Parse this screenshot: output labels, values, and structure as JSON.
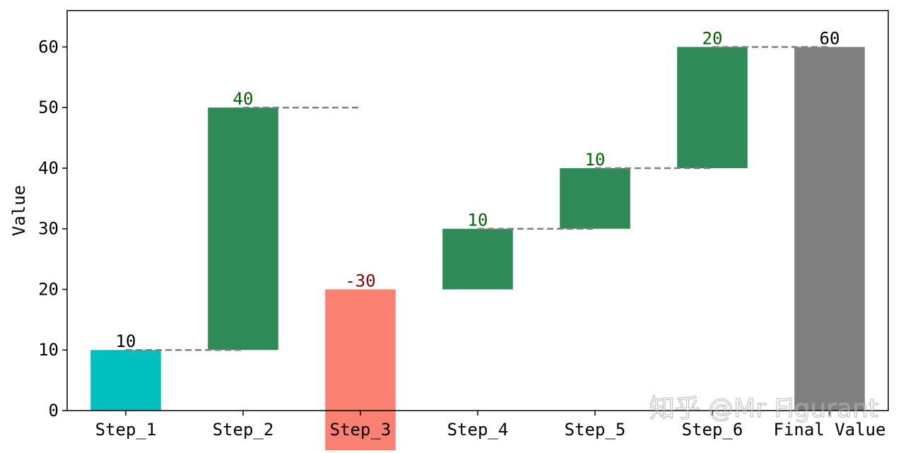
{
  "chart_data": {
    "type": "bar",
    "subtype": "waterfall",
    "categories": [
      "Step_1",
      "Step_2",
      "Step_3",
      "Step_4",
      "Step_5",
      "Step_6",
      "Final Value"
    ],
    "changes": [
      10,
      40,
      -30,
      10,
      10,
      20,
      60
    ],
    "bases": [
      0,
      10,
      20,
      20,
      30,
      40,
      0
    ],
    "labels": [
      "10",
      "40",
      "-30",
      "10",
      "10",
      "20",
      "60"
    ],
    "bar_colors": [
      "#00BFBF",
      "#2E8B57",
      "#FA8072",
      "#2E8B57",
      "#2E8B57",
      "#2E8B57",
      "#808080"
    ],
    "label_colors": [
      "#000000",
      "#006400",
      "#8B0000",
      "#006400",
      "#006400",
      "#006400",
      "#000000"
    ],
    "connector_color": "#808080",
    "ylabel": "Value",
    "xlabel": "",
    "title": "",
    "ylim": [
      0,
      66
    ],
    "yticks": [
      0,
      10,
      20,
      30,
      40,
      50,
      60
    ],
    "grid": false,
    "legend": "none"
  },
  "watermark": {
    "text": "知乎 @Mr Figurant"
  }
}
